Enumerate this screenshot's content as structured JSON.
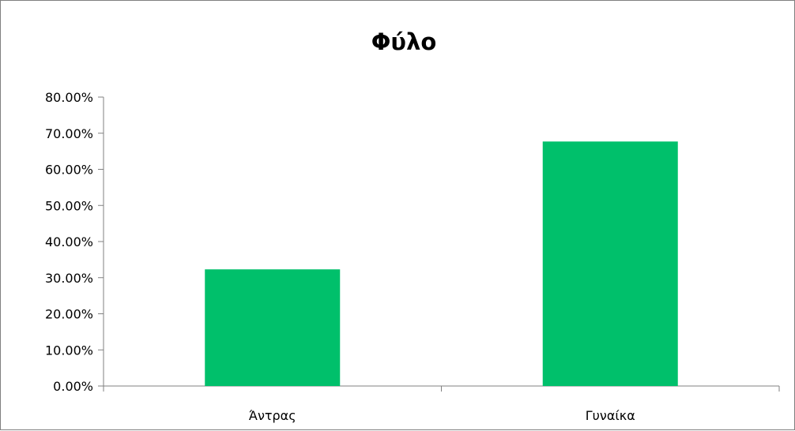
{
  "chart_data": {
    "type": "bar",
    "title": "Φύλο",
    "xlabel": "",
    "ylabel": "",
    "categories": [
      "Άντρας",
      "Γυναίκα"
    ],
    "values": [
      32.3,
      67.7
    ],
    "ylim": [
      0,
      80
    ],
    "yticks": [
      0,
      10,
      20,
      30,
      40,
      50,
      60,
      70,
      80
    ],
    "ytick_labels": [
      "0.00%",
      "10.00%",
      "20.00%",
      "30.00%",
      "40.00%",
      "50.00%",
      "60.00%",
      "70.00%",
      "80.00%"
    ],
    "bar_color": "#00c06b",
    "grid": false,
    "legend": "none"
  }
}
